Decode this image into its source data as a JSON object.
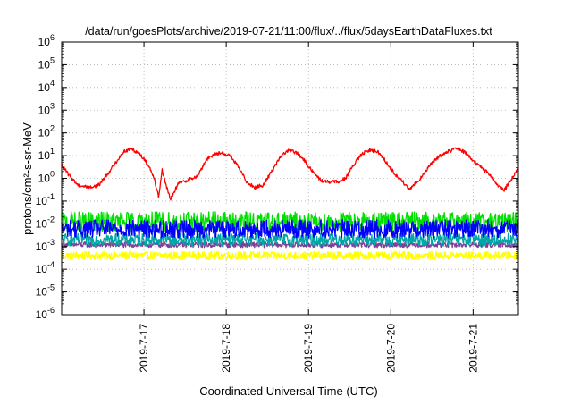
{
  "chart_data": {
    "type": "line",
    "title": "/data/run/goesPlots/archive/2019-07-21/11:00/flux/../flux/5daysEarthDataFluxes.txt",
    "xlabel": "Coordinated Universal Time (UTC)",
    "ylabel": "protons/cm²-s-sr-MeV",
    "yscale": "log",
    "ylim": [
      1e-06,
      1000000.0
    ],
    "xlim": [
      16.0,
      21.55
    ],
    "grid": true,
    "y_ticks": [
      {
        "exp": -6,
        "label": "10",
        "sup": "-6"
      },
      {
        "exp": -5,
        "label": "10",
        "sup": "-5"
      },
      {
        "exp": -4,
        "label": "10",
        "sup": "-4"
      },
      {
        "exp": -3,
        "label": "10",
        "sup": "-3"
      },
      {
        "exp": -2,
        "label": "10",
        "sup": "-2"
      },
      {
        "exp": -1,
        "label": "10",
        "sup": "-1"
      },
      {
        "exp": 0,
        "label": "10",
        "sup": "0"
      },
      {
        "exp": 1,
        "label": "10",
        "sup": "1"
      },
      {
        "exp": 2,
        "label": "10",
        "sup": "2"
      },
      {
        "exp": 3,
        "label": "10",
        "sup": "3"
      },
      {
        "exp": 4,
        "label": "10",
        "sup": "4"
      },
      {
        "exp": 5,
        "label": "10",
        "sup": "5"
      },
      {
        "exp": 6,
        "label": "10",
        "sup": "6"
      }
    ],
    "x_ticks": [
      {
        "x": 17,
        "label": "2019-7-17"
      },
      {
        "x": 18,
        "label": "2019-7-18"
      },
      {
        "x": 19,
        "label": "2019-7-19"
      },
      {
        "x": 20,
        "label": "2019-7-20"
      },
      {
        "x": 21,
        "label": "2019-7-21"
      }
    ],
    "series": [
      {
        "color": "#ffff00",
        "points": [
          [
            16.0,
            0.0004
          ],
          [
            16.5,
            0.0004
          ],
          [
            17.0,
            0.0004
          ],
          [
            17.5,
            0.0004
          ],
          [
            18.0,
            0.0004
          ],
          [
            18.5,
            0.0004
          ],
          [
            19.0,
            0.0004
          ],
          [
            19.5,
            0.0004
          ],
          [
            20.0,
            0.0004
          ],
          [
            20.5,
            0.0004
          ],
          [
            21.0,
            0.0004
          ],
          [
            21.55,
            0.0004
          ]
        ],
        "noise_dex": 0.18
      },
      {
        "color": "#7f3f98",
        "points": [
          [
            16.0,
            0.0012
          ],
          [
            16.5,
            0.0012
          ],
          [
            17.0,
            0.0012
          ],
          [
            17.5,
            0.0012
          ],
          [
            18.0,
            0.0012
          ],
          [
            18.5,
            0.0012
          ],
          [
            19.0,
            0.0012
          ],
          [
            19.5,
            0.0012
          ],
          [
            20.0,
            0.0012
          ],
          [
            20.5,
            0.0012
          ],
          [
            21.0,
            0.0012
          ],
          [
            21.55,
            0.0012
          ]
        ],
        "noise_dex": 0.12
      },
      {
        "color": "#00a5a5",
        "points": [
          [
            16.0,
            0.002
          ],
          [
            16.5,
            0.002
          ],
          [
            17.0,
            0.002
          ],
          [
            17.5,
            0.002
          ],
          [
            18.0,
            0.002
          ],
          [
            18.5,
            0.002
          ],
          [
            19.0,
            0.002
          ],
          [
            19.5,
            0.002
          ],
          [
            20.0,
            0.002
          ],
          [
            20.5,
            0.002
          ],
          [
            21.0,
            0.002
          ],
          [
            21.55,
            0.002
          ]
        ],
        "noise_dex": 0.28
      },
      {
        "color": "#00e000",
        "points": [
          [
            16.0,
            0.012
          ],
          [
            16.5,
            0.012
          ],
          [
            17.0,
            0.012
          ],
          [
            17.5,
            0.012
          ],
          [
            18.0,
            0.012
          ],
          [
            18.5,
            0.012
          ],
          [
            19.0,
            0.012
          ],
          [
            19.5,
            0.012
          ],
          [
            20.0,
            0.012
          ],
          [
            20.5,
            0.012
          ],
          [
            21.0,
            0.012
          ],
          [
            21.55,
            0.012
          ]
        ],
        "noise_dex": 0.45
      },
      {
        "color": "#0000ff",
        "points": [
          [
            16.0,
            0.006
          ],
          [
            16.5,
            0.006
          ],
          [
            17.0,
            0.006
          ],
          [
            17.5,
            0.006
          ],
          [
            18.0,
            0.006
          ],
          [
            18.5,
            0.006
          ],
          [
            19.0,
            0.006
          ],
          [
            19.5,
            0.006
          ],
          [
            20.0,
            0.006
          ],
          [
            20.5,
            0.006
          ],
          [
            21.0,
            0.006
          ],
          [
            21.55,
            0.006
          ]
        ],
        "noise_dex": 0.4
      },
      {
        "color": "#ff0000",
        "points": [
          [
            16.0,
            4.0
          ],
          [
            16.08,
            1.5
          ],
          [
            16.2,
            0.5
          ],
          [
            16.35,
            0.4
          ],
          [
            16.45,
            0.5
          ],
          [
            16.6,
            2.5
          ],
          [
            16.75,
            15
          ],
          [
            16.85,
            20
          ],
          [
            16.95,
            12
          ],
          [
            17.05,
            4
          ],
          [
            17.12,
            1.2
          ],
          [
            17.18,
            0.15
          ],
          [
            17.22,
            2.5
          ],
          [
            17.26,
            0.6
          ],
          [
            17.32,
            0.12
          ],
          [
            17.42,
            0.6
          ],
          [
            17.55,
            0.9
          ],
          [
            17.65,
            1.2
          ],
          [
            17.75,
            6
          ],
          [
            17.85,
            12
          ],
          [
            17.95,
            13
          ],
          [
            18.05,
            10
          ],
          [
            18.15,
            3
          ],
          [
            18.25,
            0.7
          ],
          [
            18.35,
            0.4
          ],
          [
            18.45,
            0.5
          ],
          [
            18.55,
            2
          ],
          [
            18.65,
            8
          ],
          [
            18.75,
            17
          ],
          [
            18.85,
            14
          ],
          [
            18.95,
            6
          ],
          [
            19.05,
            2
          ],
          [
            19.15,
            0.8
          ],
          [
            19.25,
            0.7
          ],
          [
            19.35,
            0.7
          ],
          [
            19.45,
            1
          ],
          [
            19.55,
            4
          ],
          [
            19.65,
            12
          ],
          [
            19.75,
            18
          ],
          [
            19.85,
            14
          ],
          [
            19.95,
            5
          ],
          [
            20.05,
            1.5
          ],
          [
            20.15,
            0.7
          ],
          [
            20.22,
            0.3
          ],
          [
            20.3,
            0.6
          ],
          [
            20.4,
            1.5
          ],
          [
            20.5,
            5
          ],
          [
            20.6,
            10
          ],
          [
            20.7,
            15
          ],
          [
            20.8,
            22
          ],
          [
            20.9,
            14
          ],
          [
            21.0,
            6
          ],
          [
            21.1,
            3
          ],
          [
            21.2,
            1.5
          ],
          [
            21.3,
            0.5
          ],
          [
            21.38,
            0.3
          ],
          [
            21.45,
            0.8
          ],
          [
            21.55,
            2.5
          ]
        ],
        "noise_dex": 0.08
      }
    ]
  }
}
